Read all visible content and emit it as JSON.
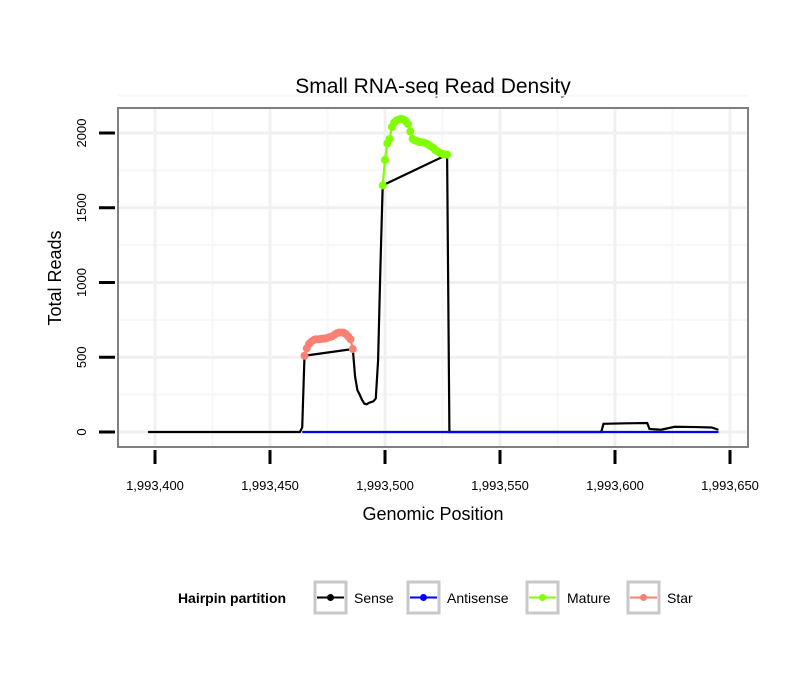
{
  "chart_data": {
    "type": "line",
    "title": "Small RNA-seq Read Density",
    "xlabel": "Genomic Position",
    "ylabel": "Total Reads",
    "xlim": [
      1993387,
      1993655
    ],
    "ylim": [
      -100,
      2170
    ],
    "x_ticks": [
      1993400,
      1993450,
      1993500,
      1993550,
      1993600,
      1993650
    ],
    "x_tick_labels": [
      "1,993,400",
      "1,993,450",
      "1,993,500",
      "1,993,550",
      "1,993,600",
      "1,993,650"
    ],
    "y_ticks": [
      0,
      500,
      1000,
      1500,
      2000
    ],
    "y_tick_labels": [
      "0",
      "500",
      "1000",
      "1500",
      "2000"
    ],
    "grid": true,
    "legend": {
      "title": "Hairpin partition",
      "placement": "bottom",
      "entries": [
        "Sense",
        "Antisense",
        "Mature",
        "Star"
      ]
    },
    "colors": {
      "Sense": "#000000",
      "Antisense": "#0000ff",
      "Mature": "#7fff00",
      "Star": "#fa8072"
    },
    "series": [
      {
        "name": "Sense",
        "points": [
          [
            1993397,
            0
          ],
          [
            1993463,
            0
          ],
          [
            1993464,
            30
          ],
          [
            1993465,
            510
          ],
          [
            1993486,
            555
          ],
          [
            1993487,
            370
          ],
          [
            1993488,
            280
          ],
          [
            1993489,
            250
          ],
          [
            1993490,
            215
          ],
          [
            1993491,
            190
          ],
          [
            1993492,
            185
          ],
          [
            1993493,
            195
          ],
          [
            1993494,
            200
          ],
          [
            1993495,
            205
          ],
          [
            1993496,
            225
          ],
          [
            1993497,
            480
          ],
          [
            1993498,
            1100
          ],
          [
            1993499,
            1650
          ],
          [
            1993527,
            1855
          ],
          [
            1993528,
            0
          ],
          [
            1993594,
            0
          ],
          [
            1993595,
            55
          ],
          [
            1993605,
            58
          ],
          [
            1993614,
            60
          ],
          [
            1993615,
            20
          ],
          [
            1993620,
            15
          ],
          [
            1993623,
            25
          ],
          [
            1993626,
            35
          ],
          [
            1993635,
            33
          ],
          [
            1993642,
            30
          ],
          [
            1993645,
            15
          ]
        ]
      },
      {
        "name": "Antisense",
        "points": [
          [
            1993464,
            0
          ],
          [
            1993645,
            0
          ]
        ]
      },
      {
        "name": "Star",
        "points": [
          [
            1993465,
            510
          ],
          [
            1993466,
            560
          ],
          [
            1993467,
            590
          ],
          [
            1993468,
            605
          ],
          [
            1993469,
            615
          ],
          [
            1993470,
            620
          ],
          [
            1993471,
            620
          ],
          [
            1993472,
            622
          ],
          [
            1993473,
            625
          ],
          [
            1993474,
            625
          ],
          [
            1993475,
            630
          ],
          [
            1993476,
            635
          ],
          [
            1993477,
            640
          ],
          [
            1993478,
            650
          ],
          [
            1993479,
            660
          ],
          [
            1993480,
            665
          ],
          [
            1993481,
            665
          ],
          [
            1993482,
            665
          ],
          [
            1993483,
            655
          ],
          [
            1993484,
            640
          ],
          [
            1993485,
            620
          ],
          [
            1993486,
            555
          ]
        ]
      },
      {
        "name": "Mature",
        "points": [
          [
            1993499,
            1650
          ],
          [
            1993500,
            1820
          ],
          [
            1993501,
            1930
          ],
          [
            1993502,
            1960
          ],
          [
            1993503,
            2040
          ],
          [
            1993504,
            2070
          ],
          [
            1993505,
            2085
          ],
          [
            1993506,
            2090
          ],
          [
            1993507,
            2095
          ],
          [
            1993508,
            2090
          ],
          [
            1993509,
            2080
          ],
          [
            1993510,
            2060
          ],
          [
            1993511,
            2010
          ],
          [
            1993512,
            1960
          ],
          [
            1993513,
            1950
          ],
          [
            1993514,
            1945
          ],
          [
            1993515,
            1940
          ],
          [
            1993516,
            1938
          ],
          [
            1993517,
            1935
          ],
          [
            1993518,
            1930
          ],
          [
            1993519,
            1920
          ],
          [
            1993520,
            1910
          ],
          [
            1993521,
            1900
          ],
          [
            1993522,
            1885
          ],
          [
            1993523,
            1875
          ],
          [
            1993524,
            1865
          ],
          [
            1993525,
            1860
          ],
          [
            1993526,
            1857
          ],
          [
            1993527,
            1855
          ]
        ]
      }
    ]
  }
}
